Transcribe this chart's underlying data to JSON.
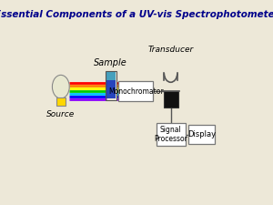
{
  "title": "Essential Components of a UV-vis Spectrophotometer",
  "title_color": "#00008B",
  "title_fontsize": 7.5,
  "background_color": "#ede8d8",
  "labels": {
    "source": "Source",
    "sample": "Sample",
    "transducer": "Transducer",
    "monochromator": "Monochromator",
    "signal_processor": "Signal\nProcessor",
    "display": "Display"
  },
  "rainbow_colors": [
    "#FF0000",
    "#FF7F00",
    "#FFFF00",
    "#00CC00",
    "#00BFFF",
    "#0000FF",
    "#8B00FF"
  ],
  "box_edgecolor": "#777777",
  "box_facecolor": "#ffffff",
  "transducer_facecolor": "#111111",
  "line_color": "#555555",
  "bulb_color": "#e8e8d0",
  "bulb_base_color": "#FFD700"
}
